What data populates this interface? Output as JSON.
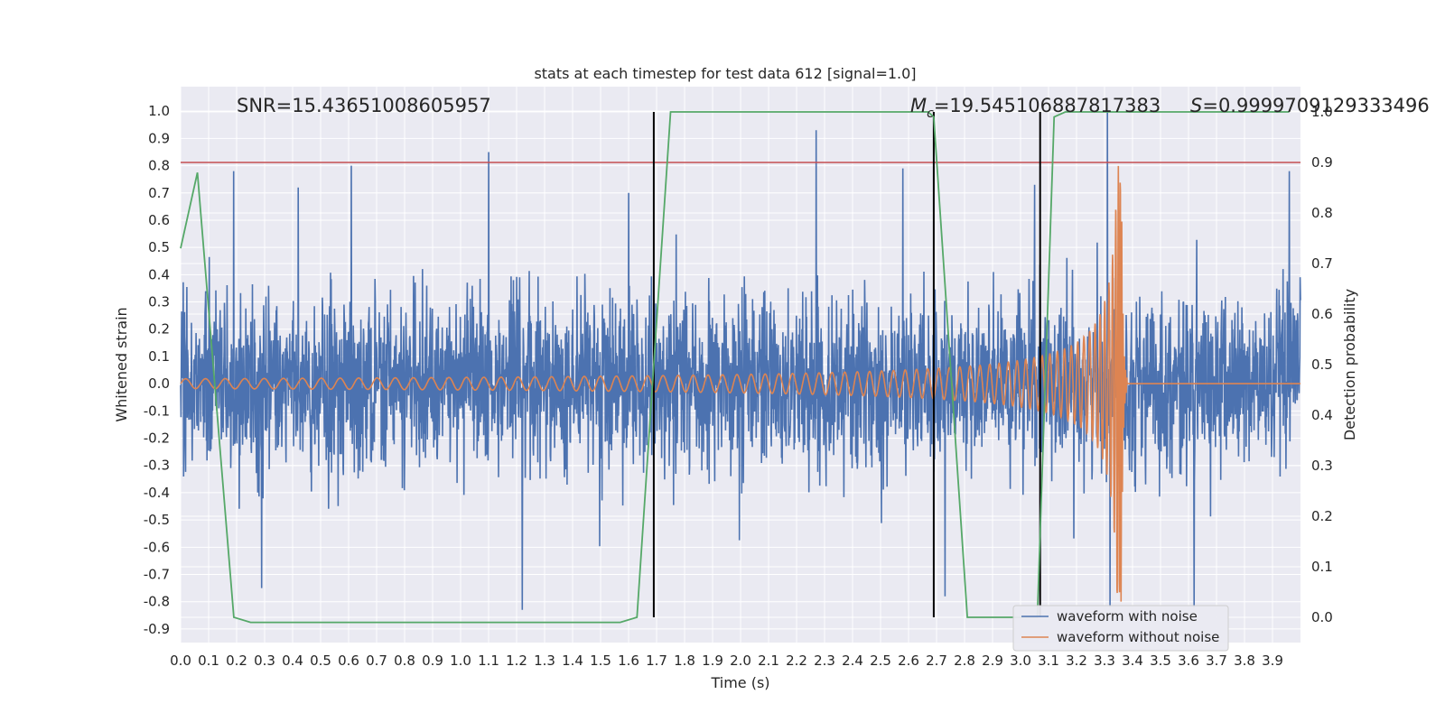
{
  "chart_data": {
    "type": "line",
    "title": "stats at each timestep for test data 612 [signal=1.0]",
    "xlabel": "Time (s)",
    "ylabel": "Whitened strain",
    "y2label": "Detection probability",
    "xlim": [
      0.0,
      4.0
    ],
    "ylim": [
      -0.95,
      1.09
    ],
    "y2lim": [
      -0.05,
      1.05
    ],
    "x_ticks": [
      0.0,
      0.1,
      0.2,
      0.3,
      0.4,
      0.5,
      0.6,
      0.7,
      0.8,
      0.9,
      1.0,
      1.1,
      1.2,
      1.3,
      1.4,
      1.5,
      1.6,
      1.7,
      1.8,
      1.9,
      2.0,
      2.1,
      2.2,
      2.3,
      2.4,
      2.5,
      2.6,
      2.7,
      2.8,
      2.9,
      3.0,
      3.1,
      3.2,
      3.3,
      3.4,
      3.5,
      3.6,
      3.7,
      3.8,
      3.9
    ],
    "y_ticks": [
      1.0,
      0.9,
      0.8,
      0.7,
      0.6,
      0.5,
      0.4,
      0.3,
      0.2,
      0.1,
      0.0,
      -0.1,
      -0.2,
      -0.3,
      -0.4,
      -0.5,
      -0.6,
      -0.7,
      -0.8,
      -0.9
    ],
    "y2_ticks": [
      1.0,
      0.9,
      0.8,
      0.7,
      0.6,
      0.5,
      0.4,
      0.3,
      0.2,
      0.1,
      0.0
    ],
    "grid": true,
    "legend_position": "bottom-right",
    "annotations": {
      "snr": "SNR=15.43651008605957",
      "chirp_mass": "=19.545106887817383",
      "chirp_mass_symbol": "M",
      "chirp_mass_sub": "c",
      "score": "=0.9999709129333496",
      "score_symbol": "S"
    },
    "threshold_line": {
      "y2": 0.9,
      "color": "#c44e52"
    },
    "vertical_lines": [
      1.69,
      2.69,
      3.07
    ],
    "series": [
      {
        "name": "waveform with noise",
        "color": "#4c72b0",
        "axis": "left",
        "kind": "noise",
        "amplitude_typical": 0.25,
        "peaks": [
          [
            0.19,
            0.78
          ],
          [
            0.42,
            0.72
          ],
          [
            0.61,
            0.8
          ],
          [
            1.1,
            0.85
          ],
          [
            1.6,
            0.7
          ],
          [
            2.27,
            0.93
          ],
          [
            2.58,
            0.79
          ],
          [
            3.05,
            0.73
          ],
          [
            3.31,
            1.0
          ],
          [
            3.96,
            0.78
          ]
        ],
        "troughs": [
          [
            0.29,
            -0.75
          ],
          [
            1.22,
            -0.83
          ],
          [
            2.73,
            -0.78
          ],
          [
            3.32,
            -0.82
          ],
          [
            3.62,
            -0.82
          ]
        ]
      },
      {
        "name": "waveform without noise",
        "color": "#dd8452",
        "axis": "left",
        "kind": "chirp",
        "merger_time": 3.36,
        "peak_amplitude": 0.8
      },
      {
        "name": "",
        "color": "#55a868",
        "axis": "right",
        "kind": "probability",
        "x": [
          0.0,
          0.06,
          0.19,
          0.25,
          1.57,
          1.63,
          1.75,
          2.67,
          2.69,
          2.81,
          3.06,
          3.12,
          3.16,
          3.9,
          3.96
        ],
        "y": [
          0.73,
          0.88,
          0.0,
          -0.01,
          -0.01,
          0.0,
          1.0,
          1.0,
          0.99,
          0.0,
          0.0,
          0.99,
          1.0,
          1.0,
          1.0
        ]
      }
    ]
  }
}
